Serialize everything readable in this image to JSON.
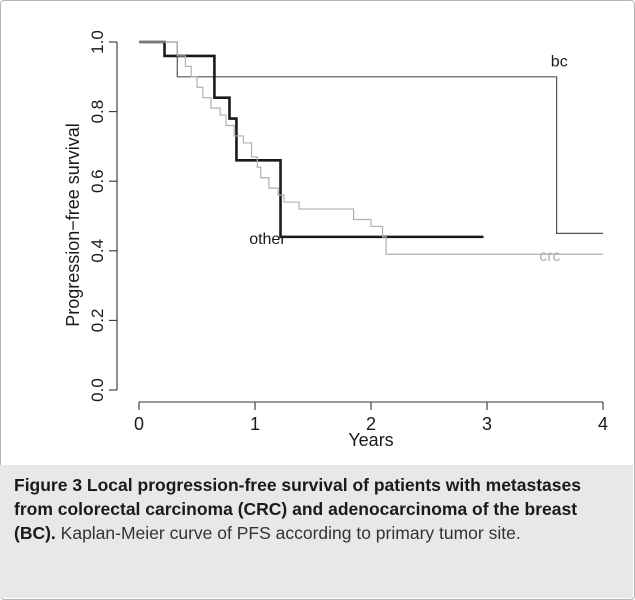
{
  "chart_data": {
    "type": "line",
    "subtype": "kaplan-meier step",
    "xlabel": "Years",
    "ylabel": "Progression−free survival",
    "xlim": [
      0,
      4
    ],
    "ylim": [
      0,
      1
    ],
    "x_ticks": [
      "0",
      "1",
      "2",
      "3",
      "4"
    ],
    "y_ticks": [
      "0.0",
      "0.2",
      "0.4",
      "0.6",
      "0.8",
      "1.0"
    ],
    "grid": false,
    "series": [
      {
        "name": "bc",
        "color": "#555555",
        "x": [
          0,
          0.33,
          3.6,
          4.0
        ],
        "y": [
          1.0,
          0.9,
          0.45,
          0.45
        ]
      },
      {
        "name": "other",
        "color": "#1a1a1a",
        "x": [
          0,
          0.22,
          0.65,
          0.78,
          0.84,
          1.22,
          2.97
        ],
        "y": [
          1.0,
          0.96,
          0.84,
          0.78,
          0.66,
          0.44,
          0.44
        ]
      },
      {
        "name": "crc",
        "color": "#b0b0b0",
        "x": [
          0,
          0.33,
          0.4,
          0.45,
          0.5,
          0.55,
          0.62,
          0.7,
          0.75,
          0.82,
          0.9,
          0.97,
          1.02,
          1.05,
          1.12,
          1.2,
          1.25,
          1.38,
          1.85,
          2.0,
          2.1,
          2.13,
          4.0
        ],
        "y": [
          1.0,
          0.96,
          0.93,
          0.9,
          0.87,
          0.84,
          0.81,
          0.79,
          0.76,
          0.73,
          0.71,
          0.67,
          0.64,
          0.61,
          0.58,
          0.56,
          0.54,
          0.52,
          0.49,
          0.47,
          0.44,
          0.39,
          0.39
        ]
      }
    ],
    "annotations": [
      {
        "text": "bc",
        "x": 3.55,
        "y": 0.93
      },
      {
        "text": "other",
        "x": 0.95,
        "y": 0.42
      },
      {
        "text": "crc",
        "x": 3.45,
        "y": 0.37
      }
    ]
  },
  "caption": {
    "title": "Figure 3 Local progression-free survival of patients with metastases from colorectal carcinoma (CRC) and adenocarcinoma of the breast (BC).",
    "body": " Kaplan-Meier curve of PFS according to primary tumor site."
  }
}
